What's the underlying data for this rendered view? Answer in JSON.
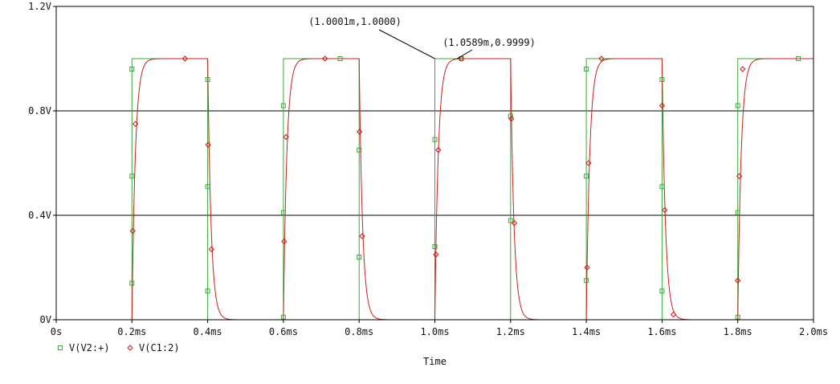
{
  "chart_data": {
    "type": "line",
    "title": "",
    "xlabel": "Time",
    "ylabel": "",
    "xlim": [
      0,
      2.0
    ],
    "ylim": [
      0,
      1.2
    ],
    "x_unit": "ms",
    "x_ticks": [
      0,
      0.2,
      0.4,
      0.6,
      0.8,
      1.0,
      1.2,
      1.4,
      1.6,
      1.8,
      2.0
    ],
    "x_tick_labels": [
      "0s",
      "0.2ms",
      "0.4ms",
      "0.6ms",
      "0.8ms",
      "1.0ms",
      "1.2ms",
      "1.4ms",
      "1.6ms",
      "1.8ms",
      "2.0ms"
    ],
    "y_ticks": [
      0,
      0.4,
      0.8,
      1.2
    ],
    "y_tick_labels": [
      "0V",
      "0.4V",
      "0.8V",
      "1.2V"
    ],
    "grid": "horizontal",
    "legend_position": "bottom-left",
    "series": [
      {
        "name": "V(V2:+)",
        "color": "#3aa83a",
        "marker": "square",
        "shape": "square-wave",
        "high": 1.0,
        "low": 0.0,
        "rising_edges": [
          0.2,
          0.6,
          1.0,
          1.4,
          1.8
        ],
        "falling_edges": [
          0.4,
          0.8,
          1.2,
          1.6
        ],
        "marker_points": [
          [
            0.2,
            0.14
          ],
          [
            0.2,
            0.55
          ],
          [
            0.2,
            0.96
          ],
          [
            0.4,
            0.92
          ],
          [
            0.4,
            0.51
          ],
          [
            0.4,
            0.11
          ],
          [
            0.6,
            0.01
          ],
          [
            0.6,
            0.41
          ],
          [
            0.6,
            0.82
          ],
          [
            0.75,
            1.0
          ],
          [
            0.8,
            0.65
          ],
          [
            0.8,
            0.24
          ],
          [
            1.0,
            0.28
          ],
          [
            1.0,
            0.69
          ],
          [
            1.07,
            1.0
          ],
          [
            1.2,
            0.78
          ],
          [
            1.2,
            0.38
          ],
          [
            1.4,
            0.15
          ],
          [
            1.4,
            0.55
          ],
          [
            1.4,
            0.96
          ],
          [
            1.6,
            0.92
          ],
          [
            1.6,
            0.51
          ],
          [
            1.6,
            0.11
          ],
          [
            1.8,
            0.01
          ],
          [
            1.8,
            0.41
          ],
          [
            1.8,
            0.82
          ],
          [
            1.96,
            1.0
          ]
        ]
      },
      {
        "name": "V(C1:2)",
        "color": "#c8201a",
        "marker": "diamond",
        "shape": "rc-charge",
        "time_constant_ms": 0.009,
        "marker_points": [
          [
            0.202,
            0.34
          ],
          [
            0.209,
            0.75
          ],
          [
            0.34,
            1.0
          ],
          [
            0.401,
            0.67
          ],
          [
            0.41,
            0.27
          ],
          [
            0.602,
            0.3
          ],
          [
            0.607,
            0.7
          ],
          [
            0.71,
            1.0
          ],
          [
            0.801,
            0.72
          ],
          [
            0.808,
            0.32
          ],
          [
            1.003,
            0.25
          ],
          [
            1.009,
            0.65
          ],
          [
            1.07,
            1.0
          ],
          [
            1.202,
            0.77
          ],
          [
            1.21,
            0.37
          ],
          [
            1.402,
            0.2
          ],
          [
            1.406,
            0.6
          ],
          [
            1.44,
            1.0
          ],
          [
            1.6,
            0.82
          ],
          [
            1.607,
            0.42
          ],
          [
            1.63,
            0.02
          ],
          [
            1.8,
            0.15
          ],
          [
            1.804,
            0.55
          ],
          [
            1.813,
            0.96
          ]
        ]
      }
    ],
    "annotations": [
      {
        "text": "(1.0001m,1.0000)",
        "point": [
          1.0001,
          1.0
        ]
      },
      {
        "text": "(1.0589m,0.9999)",
        "point": [
          1.0589,
          0.9999
        ]
      }
    ]
  }
}
